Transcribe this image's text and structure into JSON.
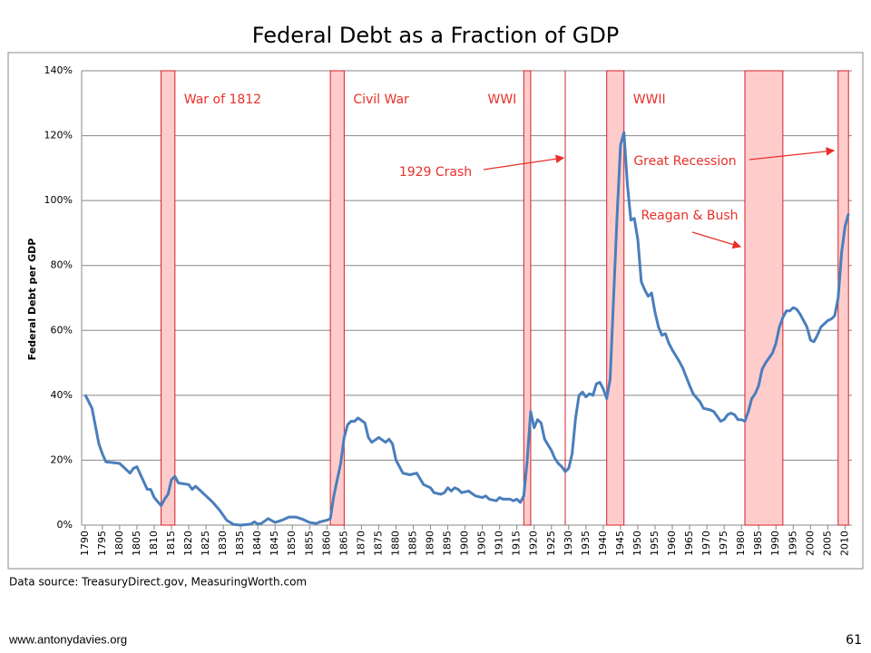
{
  "chart_data": {
    "type": "line",
    "title": "Federal Debt as a Fraction of GDP",
    "y_label": "Federal Debt per GDP",
    "source": "Data source: TreasuryDirect.gov, MeasuringWorth.com",
    "footer_left": "www.antonydavies.org",
    "footer_right": "61",
    "color": "#4a7ebb",
    "x": [
      1790,
      1792,
      1794,
      1795,
      1796,
      1800,
      1803,
      1804,
      1805,
      1808,
      1809,
      1810,
      1812,
      1813,
      1814,
      1815,
      1816,
      1817,
      1820,
      1821,
      1822,
      1823,
      1825,
      1827,
      1829,
      1831,
      1833,
      1835,
      1838,
      1839,
      1840,
      1841,
      1843,
      1845,
      1847,
      1849,
      1851,
      1853,
      1855,
      1857,
      1858,
      1860,
      1861,
      1862,
      1864,
      1865,
      1866,
      1867,
      1868,
      1869,
      1871,
      1872,
      1873,
      1875,
      1877,
      1878,
      1879,
      1880,
      1882,
      1884,
      1886,
      1888,
      1890,
      1891,
      1893,
      1894,
      1895,
      1896,
      1897,
      1898,
      1899,
      1901,
      1903,
      1905,
      1906,
      1907,
      1909,
      1910,
      1911,
      1913,
      1914,
      1915,
      1916,
      1917,
      1918,
      1919,
      1920,
      1921,
      1922,
      1923,
      1925,
      1926,
      1927,
      1928,
      1929,
      1930,
      1931,
      1932,
      1933,
      1934,
      1935,
      1936,
      1937,
      1938,
      1939,
      1940,
      1941,
      1942,
      1943,
      1944,
      1945,
      1946,
      1947,
      1948,
      1949,
      1950,
      1951,
      1952,
      1953,
      1954,
      1955,
      1956,
      1957,
      1958,
      1959,
      1960,
      1962,
      1963,
      1965,
      1966,
      1968,
      1969,
      1971,
      1972,
      1974,
      1975,
      1976,
      1977,
      1978,
      1979,
      1980,
      1981,
      1982,
      1983,
      1984,
      1985,
      1986,
      1987,
      1988,
      1989,
      1990,
      1991,
      1992,
      1993,
      1994,
      1995,
      1996,
      1997,
      1998,
      1999,
      2000,
      2001,
      2002,
      2003,
      2004,
      2005,
      2006,
      2007,
      2008,
      2009,
      2010,
      2011
    ],
    "values": [
      40.2,
      36,
      25,
      22,
      19.5,
      19,
      16,
      17.5,
      18,
      11,
      11,
      8.5,
      6,
      8,
      9.5,
      14,
      15,
      13,
      12.5,
      11,
      12,
      11,
      9,
      7,
      4.5,
      1.5,
      0.2,
      0,
      0.3,
      1,
      0.3,
      0.5,
      2,
      0.8,
      1.5,
      2.5,
      2.5,
      1.8,
      0.8,
      0.5,
      1,
      1.5,
      2,
      9,
      19,
      27,
      31,
      32,
      32,
      33,
      31.5,
      27,
      25.5,
      27,
      25.5,
      26.5,
      25,
      20,
      16,
      15.5,
      16,
      12.5,
      11.5,
      10,
      9.5,
      10,
      11.5,
      10.5,
      11.5,
      11,
      10,
      10.5,
      9,
      8.5,
      9,
      8,
      7.5,
      8.5,
      8,
      8,
      7.5,
      8,
      7,
      9,
      20,
      35,
      30,
      32.5,
      31.5,
      26.5,
      23,
      20.5,
      19,
      18,
      16.5,
      17.5,
      22,
      33,
      40,
      41,
      39.5,
      40.5,
      40,
      43.5,
      44,
      42,
      39,
      45,
      70,
      95,
      117,
      121,
      105,
      94,
      94.5,
      88,
      75,
      72.5,
      70.5,
      71.5,
      65.5,
      61,
      58.5,
      59,
      56,
      54,
      50.5,
      48.5,
      43,
      40.5,
      38,
      36,
      35.5,
      35,
      32,
      32.5,
      34,
      34.5,
      34,
      32.5,
      32.5,
      32,
      35,
      39,
      40.5,
      43,
      48,
      50,
      51.5,
      53,
      56,
      61,
      64,
      66,
      66,
      67,
      66.5,
      65,
      63,
      61,
      57,
      56.5,
      58.5,
      61,
      62,
      63,
      63.5,
      64.5,
      70,
      84,
      92,
      96
    ],
    "xlim": [
      1789,
      2012
    ],
    "xticks": [
      1790,
      1795,
      1800,
      1805,
      1810,
      1815,
      1820,
      1825,
      1830,
      1835,
      1840,
      1845,
      1850,
      1855,
      1860,
      1865,
      1870,
      1875,
      1880,
      1885,
      1890,
      1895,
      1900,
      1905,
      1910,
      1915,
      1920,
      1925,
      1930,
      1935,
      1940,
      1945,
      1950,
      1955,
      1960,
      1965,
      1970,
      1975,
      1980,
      1985,
      1990,
      1995,
      2000,
      2005,
      2010
    ],
    "ylim": [
      0,
      140
    ],
    "yticks": [
      {
        "value": 0,
        "label": "0%"
      },
      {
        "value": 20,
        "label": "20%"
      },
      {
        "value": 40,
        "label": "40%"
      },
      {
        "value": 60,
        "label": "60%"
      },
      {
        "value": 80,
        "label": "80%"
      },
      {
        "value": 100,
        "label": "100%"
      },
      {
        "value": 120,
        "label": "120%"
      },
      {
        "value": 140,
        "label": "140%"
      }
    ],
    "grid": true,
    "bands": [
      {
        "label": "War of 1812",
        "start": 1812,
        "end": 1816
      },
      {
        "label": "Civil War",
        "start": 1861,
        "end": 1865
      },
      {
        "label": "WWI",
        "start": 1917,
        "end": 1919
      },
      {
        "label": "WWII",
        "start": 1941,
        "end": 1946
      },
      {
        "start": 1981,
        "end": 1992
      },
      {
        "start": 2008,
        "end": 2011
      }
    ],
    "markers": [
      1929
    ],
    "annotations": [
      "1929 Crash",
      "Great Recession",
      "Reagan & Bush"
    ]
  }
}
